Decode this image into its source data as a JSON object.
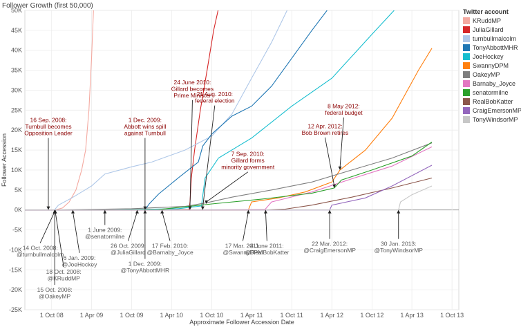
{
  "chart_data": {
    "type": "line",
    "title": "Follower Growth (first 50,000)",
    "xlabel": "Approximate Follower Accession Date",
    "ylabel": "Follower Accession",
    "xlim": [
      "2008-06-01",
      "2013-11-01"
    ],
    "ylim": [
      -25000,
      50000
    ],
    "grid": true,
    "legend": {
      "title": "Twitter account",
      "position": "right"
    },
    "x_ticks": [
      {
        "date": "2008-10-01",
        "label": "1 Oct 08"
      },
      {
        "date": "2009-04-01",
        "label": "1 Apr 09"
      },
      {
        "date": "2009-10-01",
        "label": "1 Oct 09"
      },
      {
        "date": "2010-04-01",
        "label": "1 Apr 10"
      },
      {
        "date": "2010-10-01",
        "label": "1 Oct 10"
      },
      {
        "date": "2011-04-01",
        "label": "1 Apr 11"
      },
      {
        "date": "2011-10-01",
        "label": "1 Oct 11"
      },
      {
        "date": "2012-04-01",
        "label": "1 Apr 12"
      },
      {
        "date": "2012-10-01",
        "label": "1 Oct 12"
      },
      {
        "date": "2013-04-01",
        "label": "1 Apr 13"
      },
      {
        "date": "2013-10-01",
        "label": "1 Oct 13"
      }
    ],
    "y_ticks": [
      {
        "value": 50000,
        "label": "50K"
      },
      {
        "value": 45000,
        "label": "45K"
      },
      {
        "value": 40000,
        "label": "40K"
      },
      {
        "value": 35000,
        "label": "35K"
      },
      {
        "value": 30000,
        "label": "30K"
      },
      {
        "value": 25000,
        "label": "25K"
      },
      {
        "value": 20000,
        "label": "20K"
      },
      {
        "value": 15000,
        "label": "15K"
      },
      {
        "value": 10000,
        "label": "10K"
      },
      {
        "value": 5000,
        "label": "5K"
      },
      {
        "value": 0,
        "label": "0K"
      },
      {
        "value": -5000,
        "label": "-5K"
      },
      {
        "value": -10000,
        "label": "-10K"
      },
      {
        "value": -15000,
        "label": "-15K"
      },
      {
        "value": -20000,
        "label": "-20K"
      },
      {
        "value": -25000,
        "label": "-25K"
      }
    ],
    "series": [
      {
        "name": "KRuddMP",
        "color": "#f4a9a0",
        "points": [
          [
            "2008-10-18",
            0
          ],
          [
            "2008-11-20",
            500
          ],
          [
            "2008-12-20",
            2000
          ],
          [
            "2009-01-20",
            5000
          ],
          [
            "2009-02-15",
            10000
          ],
          [
            "2009-03-05",
            15000
          ],
          [
            "2009-03-20",
            25000
          ],
          [
            "2009-04-01",
            38000
          ],
          [
            "2009-04-10",
            50000
          ]
        ]
      },
      {
        "name": "JuliaGillard",
        "color": "#d62728",
        "points": [
          [
            "2009-10-26",
            0
          ],
          [
            "2010-06-20",
            100
          ],
          [
            "2010-06-24",
            2000
          ],
          [
            "2010-06-30",
            8000
          ],
          [
            "2010-07-15",
            15000
          ],
          [
            "2010-08-10",
            25000
          ],
          [
            "2010-09-10",
            35000
          ],
          [
            "2010-10-10",
            45000
          ],
          [
            "2010-10-30",
            50000
          ]
        ]
      },
      {
        "name": "turnbullmalcolm",
        "color": "#aec7e8",
        "points": [
          [
            "2008-10-14",
            0
          ],
          [
            "2008-11-01",
            1200
          ],
          [
            "2009-01-01",
            3000
          ],
          [
            "2009-04-01",
            6000
          ],
          [
            "2009-06-01",
            9000
          ],
          [
            "2009-10-01",
            10800
          ],
          [
            "2010-01-01",
            12000
          ],
          [
            "2010-06-01",
            15000
          ],
          [
            "2010-10-01",
            18500
          ],
          [
            "2011-01-01",
            24000
          ],
          [
            "2011-04-01",
            33000
          ],
          [
            "2011-07-01",
            42000
          ],
          [
            "2011-09-10",
            50000
          ]
        ]
      },
      {
        "name": "TonyAbbottMHR",
        "color": "#1f77b4",
        "points": [
          [
            "2009-12-01",
            0
          ],
          [
            "2009-12-20",
            1500
          ],
          [
            "2010-02-01",
            4000
          ],
          [
            "2010-05-01",
            8000
          ],
          [
            "2010-08-01",
            12000
          ],
          [
            "2010-08-21",
            16000
          ],
          [
            "2010-10-01",
            19000
          ],
          [
            "2011-01-01",
            23500
          ],
          [
            "2011-04-01",
            26000
          ],
          [
            "2011-07-01",
            31000
          ],
          [
            "2011-10-01",
            38000
          ],
          [
            "2012-01-01",
            45000
          ],
          [
            "2012-03-10",
            50000
          ]
        ]
      },
      {
        "name": "JoeHockey",
        "color": "#17becf",
        "points": [
          [
            "2009-01-06",
            0
          ],
          [
            "2009-10-01",
            100
          ],
          [
            "2010-05-01",
            300
          ],
          [
            "2010-08-15",
            1000
          ],
          [
            "2010-09-01",
            8000
          ],
          [
            "2010-11-01",
            13000
          ],
          [
            "2011-04-01",
            18000
          ],
          [
            "2011-10-01",
            26000
          ],
          [
            "2012-04-01",
            33000
          ],
          [
            "2012-10-01",
            44000
          ],
          [
            "2013-01-10",
            50000
          ]
        ]
      },
      {
        "name": "SwannyDPM",
        "color": "#ff7f0e",
        "points": [
          [
            "2011-03-17",
            0
          ],
          [
            "2011-04-01",
            2000
          ],
          [
            "2011-08-01",
            3000
          ],
          [
            "2011-12-01",
            4500
          ],
          [
            "2012-04-01",
            7000
          ],
          [
            "2012-05-08",
            10000
          ],
          [
            "2012-09-01",
            15000
          ],
          [
            "2013-01-01",
            23000
          ],
          [
            "2013-05-01",
            35000
          ],
          [
            "2013-07-01",
            40500
          ]
        ]
      },
      {
        "name": "OakeyMP",
        "color": "#7f7f7f",
        "points": [
          [
            "2008-10-15",
            0
          ],
          [
            "2009-10-01",
            300
          ],
          [
            "2010-06-01",
            900
          ],
          [
            "2010-09-07",
            1800
          ],
          [
            "2011-01-01",
            3200
          ],
          [
            "2011-07-01",
            5000
          ],
          [
            "2012-01-01",
            7000
          ],
          [
            "2012-07-01",
            10000
          ],
          [
            "2013-01-01",
            13000
          ],
          [
            "2013-07-01",
            16800
          ]
        ]
      },
      {
        "name": "Barnaby_Joyce",
        "color": "#e377c2",
        "points": [
          [
            "2010-02-17",
            0
          ],
          [
            "2011-06-01",
            100
          ],
          [
            "2011-07-01",
            2000
          ],
          [
            "2012-01-01",
            4500
          ],
          [
            "2012-07-01",
            7800
          ],
          [
            "2013-01-01",
            11000
          ],
          [
            "2013-07-01",
            15800
          ]
        ]
      },
      {
        "name": "senatormilne",
        "color": "#2ca02c",
        "points": [
          [
            "2009-06-01",
            0
          ],
          [
            "2010-02-01",
            100
          ],
          [
            "2010-10-01",
            1500
          ],
          [
            "2011-06-01",
            2800
          ],
          [
            "2012-01-01",
            4200
          ],
          [
            "2012-04-12",
            5500
          ],
          [
            "2012-05-15",
            7500
          ],
          [
            "2012-10-01",
            10000
          ],
          [
            "2013-04-01",
            13500
          ],
          [
            "2013-07-01",
            17000
          ]
        ]
      },
      {
        "name": "RealBobKatter",
        "color": "#8c564b",
        "points": [
          [
            "2011-06-04",
            0
          ],
          [
            "2011-09-01",
            200
          ],
          [
            "2012-01-01",
            1200
          ],
          [
            "2012-07-01",
            3200
          ],
          [
            "2013-01-01",
            5500
          ],
          [
            "2013-07-01",
            8000
          ]
        ]
      },
      {
        "name": "CraigEmersonMP",
        "color": "#9467bd",
        "points": [
          [
            "2012-03-22",
            0
          ],
          [
            "2012-04-01",
            1200
          ],
          [
            "2012-09-01",
            3000
          ],
          [
            "2013-01-01",
            6000
          ],
          [
            "2013-07-01",
            11200
          ]
        ]
      },
      {
        "name": "TonyWindsorMP",
        "color": "#c7c7c7",
        "points": [
          [
            "2013-01-30",
            0
          ],
          [
            "2013-02-08",
            2000
          ],
          [
            "2013-04-01",
            3800
          ],
          [
            "2013-07-01",
            6000
          ]
        ]
      }
    ],
    "annotations": [
      {
        "id": "turnbull-leader",
        "lines": [
          "16 Sep. 2008:",
          "Turnbull becomes",
          "Opposition Leader"
        ],
        "color": "#8b0000",
        "at": [
          "2008-09-16",
          0
        ],
        "anchor": [
          "2008-09-16",
          22000
        ]
      },
      {
        "id": "abbott-spill",
        "lines": [
          "1 Dec. 2009:",
          "Abbott wins spill",
          "against Turnbull"
        ],
        "color": "#8b0000",
        "at": [
          "2009-12-01",
          0
        ],
        "anchor": [
          "2009-12-01",
          22000
        ]
      },
      {
        "id": "gillard-pm",
        "lines": [
          "24 June 2010:",
          "Gillard becomes",
          "Prime Minister"
        ],
        "color": "#8b0000",
        "at": [
          "2010-06-24",
          0
        ],
        "anchor": [
          "2010-07-05",
          31500
        ]
      },
      {
        "id": "federal-election",
        "lines": [
          "21 Aug. 2010:",
          "federal election"
        ],
        "color": "#8b0000",
        "at": [
          "2010-08-21",
          0
        ],
        "anchor": [
          "2010-10-15",
          28500
        ]
      },
      {
        "id": "minority-govt",
        "lines": [
          "7 Sep. 2010:",
          "Gillard forms",
          "minority government"
        ],
        "color": "#8b0000",
        "at": [
          "2010-09-07",
          1500
        ],
        "anchor": [
          "2011-03-15",
          13500
        ]
      },
      {
        "id": "bob-brown",
        "lines": [
          "12 Apr. 2012:",
          "Bob Brown retires"
        ],
        "color": "#8b0000",
        "at": [
          "2012-04-12",
          5500
        ],
        "anchor": [
          "2012-03-01",
          20500
        ]
      },
      {
        "id": "federal-budget",
        "lines": [
          "8 May 2012:",
          "federal budget"
        ],
        "color": "#8b0000",
        "at": [
          "2012-05-08",
          10000
        ],
        "anchor": [
          "2012-05-25",
          25500
        ]
      },
      {
        "id": "turnbull-join",
        "lines": [
          "14 Oct. 2008:",
          "@turnbullmalcolm"
        ],
        "color": "#595959",
        "at": [
          "2008-10-14",
          0
        ],
        "anchor": [
          "2008-08-10",
          -10000
        ]
      },
      {
        "id": "oakey-join",
        "lines": [
          "15 Oct. 2008:",
          "@OakeyMP"
        ],
        "color": "#595959",
        "at": [
          "2008-10-15",
          0
        ],
        "anchor": [
          "2008-10-15",
          -20500
        ]
      },
      {
        "id": "krudd-join",
        "lines": [
          "18 Oct. 2008:",
          "@KRuddMP"
        ],
        "color": "#595959",
        "at": [
          "2008-10-18",
          0
        ],
        "anchor": [
          "2008-11-25",
          -16000
        ]
      },
      {
        "id": "hockey-join",
        "lines": [
          "6 Jan. 2009:",
          "@JoeHockey"
        ],
        "color": "#595959",
        "at": [
          "2009-01-06",
          0
        ],
        "anchor": [
          "2009-02-05",
          -12500
        ]
      },
      {
        "id": "milne-join",
        "lines": [
          "1 June 2009:",
          "@senatormilne"
        ],
        "color": "#595959",
        "at": [
          "2009-06-01",
          0
        ],
        "anchor": [
          "2009-06-01",
          -5500
        ]
      },
      {
        "id": "gillard-join",
        "lines": [
          "26 Oct. 2009:",
          "@JuliaGillard"
        ],
        "color": "#595959",
        "at": [
          "2009-10-26",
          0
        ],
        "anchor": [
          "2009-09-15",
          -9500
        ]
      },
      {
        "id": "abbott-join",
        "lines": [
          "1 Dec. 2009:",
          "@TonyAbbottMHR"
        ],
        "color": "#595959",
        "at": [
          "2009-12-01",
          0
        ],
        "anchor": [
          "2009-12-01",
          -14000
        ]
      },
      {
        "id": "joyce-join",
        "lines": [
          "17 Feb. 2010:",
          "@Barnaby_Joyce"
        ],
        "color": "#595959",
        "at": [
          "2010-02-17",
          0
        ],
        "anchor": [
          "2010-03-25",
          -9500
        ]
      },
      {
        "id": "swanny-join",
        "lines": [
          "17 Mar. 2011:",
          "@SwannyDPM"
        ],
        "color": "#595959",
        "at": [
          "2011-03-17",
          0
        ],
        "anchor": [
          "2011-02-20",
          -9500
        ]
      },
      {
        "id": "katter-join",
        "lines": [
          "4 June 2011:",
          "@RealBobKatter"
        ],
        "color": "#595959",
        "at": [
          "2011-06-04",
          0
        ],
        "anchor": [
          "2011-06-10",
          -9500
        ]
      },
      {
        "id": "emerson-join",
        "lines": [
          "22 Mar. 2012:",
          "@CraigEmersonMP"
        ],
        "color": "#595959",
        "at": [
          "2012-03-22",
          0
        ],
        "anchor": [
          "2012-03-22",
          -9000
        ]
      },
      {
        "id": "windsor-join",
        "lines": [
          "30 Jan. 2013:",
          "@TonyWindsorMP"
        ],
        "color": "#595959",
        "at": [
          "2013-01-30",
          0
        ],
        "anchor": [
          "2013-01-30",
          -9000
        ]
      }
    ]
  }
}
